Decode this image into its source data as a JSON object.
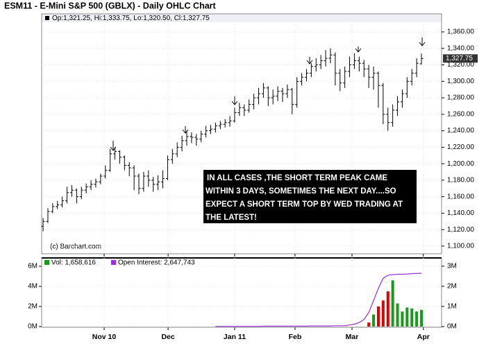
{
  "chart_data": [
    {
      "type": "ohlc",
      "title": "ESM11 - E-Mini S&P 500 (GBLX) - Daily OHLC Chart",
      "info": "Op:1,321.25, Hi:1,333.75, Lo:1,320.50, Cl:1,327.75",
      "credit": "(c) Barchart.com",
      "last_label": "1,327.75",
      "annotation": [
        "IN ALL CASES ,THE SHORT TERM PEAK CAME",
        "WITHIN 3 DAYS, SOMETIMES THE NEXT DAY....SO",
        "EXPECT A SHORT TERM TOP BY WED TRADING AT",
        "THE LATEST!"
      ],
      "color": "#000000",
      "grid": true,
      "xlim": [
        -0.3,
        83.2
      ],
      "xticks": [
        {
          "value": 12.75,
          "label": "Nov 10"
        },
        {
          "value": 26.1,
          "label": "Dec"
        },
        {
          "value": 40,
          "label": "Jan 11"
        },
        {
          "value": 52.6,
          "label": "Feb"
        },
        {
          "value": 64.5,
          "label": "Mar"
        },
        {
          "value": 79.4,
          "label": "Apr"
        }
      ],
      "ylim": [
        1090.7,
        1371.8
      ],
      "yticks": [
        {
          "value": 1100,
          "label": "1,100.00"
        },
        {
          "value": 1120,
          "label": "1,120.00"
        },
        {
          "value": 1140,
          "label": "1,140.00"
        },
        {
          "value": 1160,
          "label": "1,160.00"
        },
        {
          "value": 1180,
          "label": "1,180.00"
        },
        {
          "value": 1200,
          "label": "1,200.00"
        },
        {
          "value": 1220,
          "label": "1,220.00"
        },
        {
          "value": 1240,
          "label": "1,240.00"
        },
        {
          "value": 1260,
          "label": "1,260.00"
        },
        {
          "value": 1280,
          "label": "1,280.00"
        },
        {
          "value": 1300,
          "label": "1,300.00"
        },
        {
          "value": 1320,
          "label": "1,320.00"
        },
        {
          "value": 1340,
          "label": "1,340.00"
        },
        {
          "value": 1360,
          "label": "1,360.00"
        }
      ],
      "open": [
        1124,
        1130,
        1142,
        1148,
        1150,
        1155,
        1165,
        1168,
        1160,
        1168,
        1172,
        1175,
        1178,
        1185,
        1192,
        1212,
        1215,
        1208,
        1198,
        1195,
        1185,
        1170,
        1185,
        1180,
        1175,
        1178,
        1182,
        1205,
        1212,
        1220,
        1228,
        1233,
        1232,
        1230,
        1236,
        1240,
        1242,
        1246,
        1248,
        1250,
        1252,
        1262,
        1268,
        1265,
        1272,
        1280,
        1285,
        1292,
        1280,
        1282,
        1288,
        1285,
        1290,
        1272,
        1300,
        1305,
        1310,
        1318,
        1320,
        1325,
        1328,
        1332,
        1310,
        1298,
        1312,
        1320,
        1325,
        1322,
        1315,
        1305,
        1310,
        1295,
        1260,
        1250,
        1265,
        1275,
        1285,
        1300,
        1310,
        1321.25
      ],
      "high": [
        1134,
        1146,
        1152,
        1155,
        1160,
        1172,
        1174,
        1170,
        1172,
        1176,
        1180,
        1182,
        1188,
        1198,
        1218,
        1220,
        1216,
        1210,
        1202,
        1198,
        1188,
        1190,
        1192,
        1184,
        1186,
        1192,
        1210,
        1218,
        1226,
        1234,
        1240,
        1238,
        1236,
        1240,
        1246,
        1247,
        1250,
        1252,
        1254,
        1258,
        1268,
        1274,
        1272,
        1278,
        1285,
        1292,
        1298,
        1294,
        1290,
        1294,
        1292,
        1296,
        1292,
        1305,
        1310,
        1315,
        1322,
        1328,
        1332,
        1338,
        1340,
        1335,
        1315,
        1318,
        1330,
        1334,
        1330,
        1326,
        1320,
        1318,
        1312,
        1298,
        1268,
        1272,
        1282,
        1290,
        1305,
        1315,
        1328,
        1333.75
      ],
      "low": [
        1118,
        1128,
        1140,
        1145,
        1147,
        1152,
        1160,
        1152,
        1157,
        1164,
        1168,
        1171,
        1175,
        1182,
        1190,
        1205,
        1200,
        1192,
        1185,
        1168,
        1163,
        1166,
        1172,
        1166,
        1168,
        1170,
        1180,
        1200,
        1208,
        1215,
        1222,
        1225,
        1222,
        1226,
        1232,
        1236,
        1238,
        1242,
        1244,
        1245,
        1250,
        1258,
        1258,
        1262,
        1266,
        1272,
        1280,
        1270,
        1272,
        1276,
        1275,
        1280,
        1260,
        1268,
        1295,
        1300,
        1305,
        1312,
        1315,
        1318,
        1322,
        1295,
        1288,
        1292,
        1305,
        1315,
        1312,
        1305,
        1292,
        1290,
        1268,
        1248,
        1240,
        1245,
        1258,
        1268,
        1280,
        1295,
        1305,
        1320.5
      ],
      "close": [
        1130,
        1142,
        1148,
        1150,
        1155,
        1165,
        1168,
        1160,
        1168,
        1172,
        1175,
        1178,
        1185,
        1192,
        1212,
        1215,
        1208,
        1198,
        1195,
        1185,
        1170,
        1185,
        1180,
        1175,
        1178,
        1182,
        1205,
        1212,
        1220,
        1228,
        1233,
        1232,
        1230,
        1236,
        1240,
        1242,
        1246,
        1248,
        1250,
        1252,
        1262,
        1268,
        1265,
        1272,
        1280,
        1285,
        1292,
        1280,
        1282,
        1288,
        1285,
        1290,
        1272,
        1300,
        1305,
        1310,
        1318,
        1320,
        1325,
        1328,
        1332,
        1310,
        1298,
        1312,
        1320,
        1325,
        1322,
        1315,
        1305,
        1310,
        1295,
        1260,
        1250,
        1265,
        1275,
        1285,
        1300,
        1310,
        1322,
        1327.75
      ]
    },
    {
      "type": "volume",
      "up_color": "#1a9a1a",
      "down_color": "#dd0000",
      "grid": true,
      "xlim": [
        -0.3,
        83.2
      ],
      "xticks": [
        {
          "value": 12.75,
          "label": "Nov 10"
        },
        {
          "value": 26.1,
          "label": "Dec"
        },
        {
          "value": 40,
          "label": "Jan 11"
        },
        {
          "value": 52.6,
          "label": "Feb"
        },
        {
          "value": 64.5,
          "label": "Mar"
        },
        {
          "value": 79.4,
          "label": "Apr"
        }
      ],
      "ylim": [
        -0.07,
        6.83
      ],
      "yticks": [
        {
          "value": 0,
          "label": "0M"
        },
        {
          "value": 2,
          "label": "2M"
        },
        {
          "value": 4,
          "label": "4M"
        },
        {
          "value": 6,
          "label": "6M"
        }
      ],
      "y2lim": [
        -0.035,
        3.41
      ],
      "y2ticks": [
        {
          "value": 0,
          "label": "0M"
        },
        {
          "value": 1,
          "label": "1M"
        },
        {
          "value": 2,
          "label": "2M"
        },
        {
          "value": 3,
          "label": "3M"
        }
      ],
      "series": [
        {
          "name": "Vol: 1,658,616",
          "color": "#1a9a1a",
          "values": [
            null,
            null,
            null,
            null,
            null,
            null,
            null,
            null,
            null,
            null,
            null,
            null,
            null,
            null,
            null,
            null,
            null,
            null,
            null,
            null,
            null,
            null,
            null,
            null,
            null,
            null,
            null,
            null,
            null,
            null,
            null,
            null,
            null,
            null,
            null,
            null,
            null,
            null,
            null,
            null,
            null,
            null,
            null,
            null,
            null,
            null,
            null,
            null,
            null,
            null,
            null,
            null,
            null,
            null,
            null,
            null,
            null,
            null,
            null,
            null,
            null,
            null,
            null,
            null,
            null,
            null,
            null,
            null,
            0.4,
            1.2,
            2.0,
            2.6,
            3.5,
            4.6,
            2.3,
            1.5,
            1.9,
            1.8,
            1.5,
            1.658616
          ]
        },
        {
          "name": "Open Interest: 2,647,743",
          "color": "#9b30d9",
          "axis": "y2",
          "values": [
            null,
            null,
            null,
            null,
            null,
            null,
            null,
            null,
            null,
            null,
            null,
            null,
            null,
            null,
            null,
            null,
            null,
            null,
            null,
            null,
            null,
            null,
            null,
            null,
            null,
            null,
            null,
            null,
            null,
            null,
            null,
            null,
            null,
            null,
            null,
            null,
            0.01,
            0.01,
            0.01,
            0.01,
            0.01,
            0.01,
            0.01,
            0.01,
            0.01,
            0.01,
            0.02,
            0.02,
            0.02,
            0.02,
            0.02,
            0.02,
            0.02,
            0.02,
            0.02,
            0.02,
            0.03,
            0.03,
            0.03,
            0.03,
            0.03,
            0.04,
            0.04,
            0.04,
            0.08,
            0.12,
            0.2,
            0.35,
            0.7,
            1.3,
            1.9,
            2.4,
            2.55,
            2.58,
            2.6,
            2.6,
            2.61,
            2.63,
            2.64,
            2.647743
          ]
        }
      ]
    }
  ]
}
